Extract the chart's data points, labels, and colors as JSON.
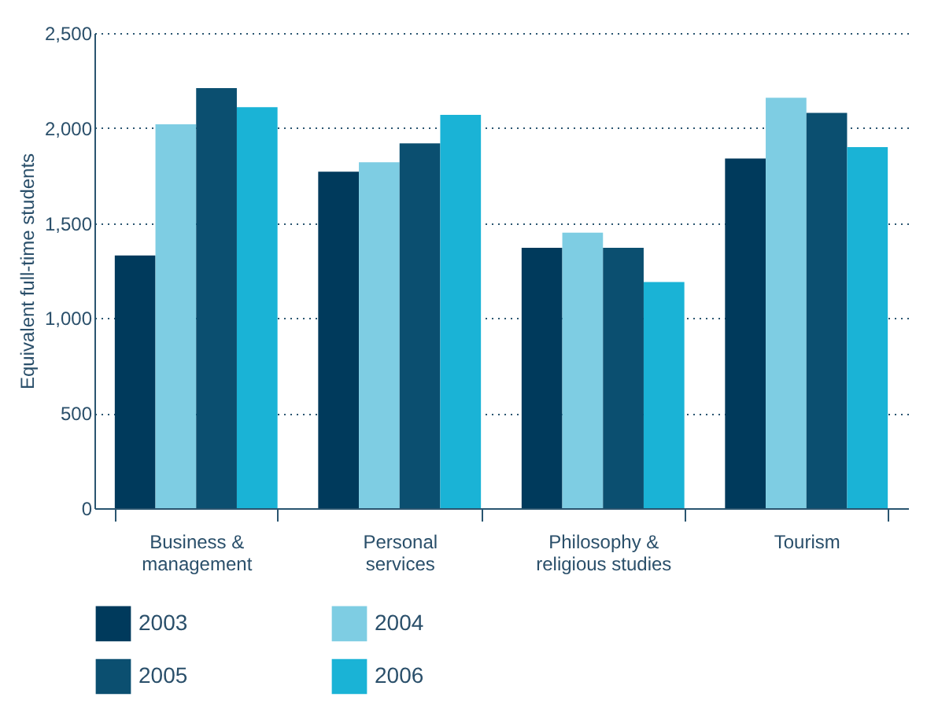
{
  "chart_data": {
    "type": "bar",
    "ylabel": "Equivalent full-time students",
    "categories": [
      "Business & management",
      "Personal services",
      "Philosophy & religious studies",
      "Tourism"
    ],
    "series": [
      {
        "name": "2003",
        "color": "#003a5c",
        "values": [
          1330,
          1770,
          1370,
          1840
        ]
      },
      {
        "name": "2004",
        "color": "#7ecde3",
        "values": [
          2020,
          1820,
          1450,
          2160
        ]
      },
      {
        "name": "2005",
        "color": "#0b4f70",
        "values": [
          2210,
          1920,
          1370,
          2080
        ]
      },
      {
        "name": "2006",
        "color": "#1ab3d6",
        "values": [
          2110,
          2070,
          1190,
          1900
        ]
      }
    ],
    "ylim": [
      0,
      2500
    ],
    "yticks": [
      0,
      500,
      {
        "value": 1000,
        "label": "1,000"
      },
      {
        "value": 1500,
        "label": "1,500"
      },
      {
        "value": 2000,
        "label": "2,000"
      },
      {
        "value": 2500,
        "label": "2,500"
      }
    ],
    "grid": "y",
    "legend": "bottom"
  }
}
